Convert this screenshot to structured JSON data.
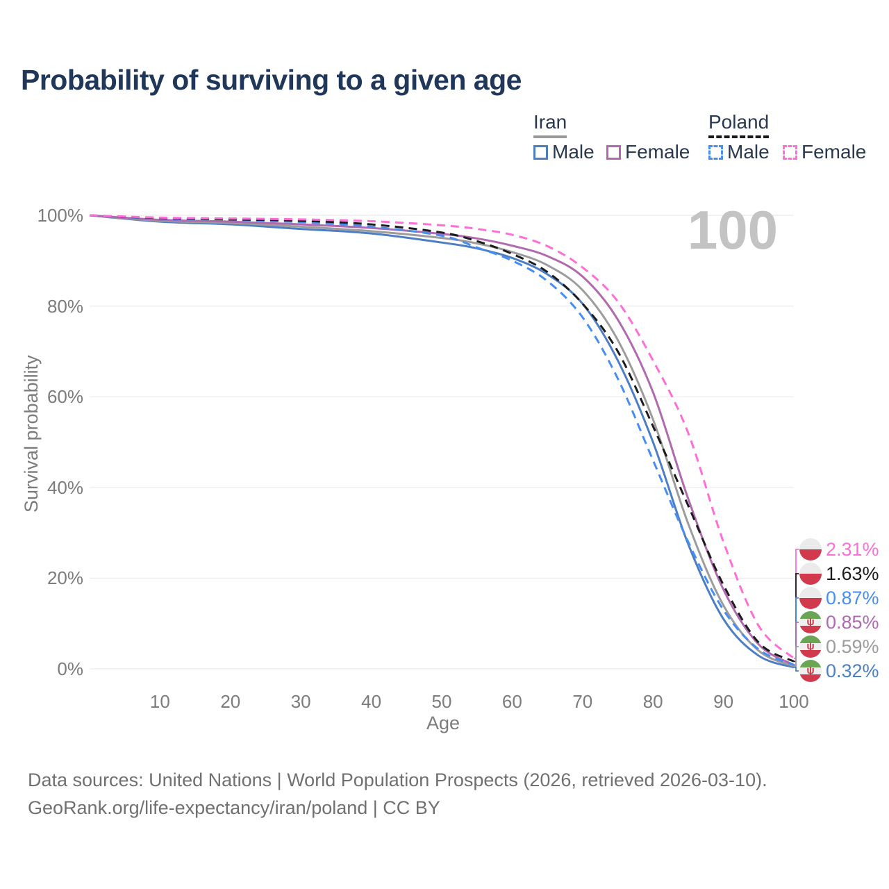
{
  "title": "Probability of surviving to a given age",
  "legend": {
    "groups": [
      {
        "name": "Iran",
        "style": "solid",
        "line_color": "#9a9a9a",
        "items": [
          {
            "label": "Male",
            "color": "#4d7ec4"
          },
          {
            "label": "Female",
            "color": "#b06ab0"
          }
        ]
      },
      {
        "name": "Poland",
        "style": "dashed",
        "line_color": "#1a1a1a",
        "items": [
          {
            "label": "Male",
            "color": "#478df3"
          },
          {
            "label": "Female",
            "color": "#ff6ed8"
          }
        ]
      }
    ]
  },
  "chart_data": {
    "type": "line",
    "title": "Probability of surviving to a given age",
    "xlabel": "Age",
    "ylabel": "Survival probability",
    "xlim": [
      0,
      100
    ],
    "ylim": [
      0,
      100
    ],
    "grid": "horizontal",
    "legend_position": "top-right",
    "annotations": {
      "watermark": "100"
    },
    "x_ticks": [
      {
        "v": 10,
        "label": "10"
      },
      {
        "v": 20,
        "label": "20"
      },
      {
        "v": 30,
        "label": "30"
      },
      {
        "v": 40,
        "label": "40"
      },
      {
        "v": 50,
        "label": "50"
      },
      {
        "v": 60,
        "label": "60"
      },
      {
        "v": 70,
        "label": "70"
      },
      {
        "v": 80,
        "label": "80"
      },
      {
        "v": 90,
        "label": "90"
      },
      {
        "v": 100,
        "label": "100"
      }
    ],
    "y_ticks": [
      {
        "v": 0,
        "label": "0%"
      },
      {
        "v": 20,
        "label": "20%"
      },
      {
        "v": 40,
        "label": "40%"
      },
      {
        "v": 60,
        "label": "60%"
      },
      {
        "v": 80,
        "label": "80%"
      },
      {
        "v": 100,
        "label": "100%"
      }
    ],
    "x": [
      0,
      10,
      20,
      30,
      40,
      50,
      55,
      60,
      65,
      70,
      75,
      80,
      85,
      90,
      95,
      100
    ],
    "series": [
      {
        "name": "Poland Female",
        "country": "Poland",
        "sex": "female",
        "color": "#ff6ed8",
        "dash": "dashed",
        "flag": "poland",
        "end_label": "2.31%",
        "values": [
          100,
          99.5,
          99.3,
          99.1,
          98.7,
          97.8,
          97.0,
          95.7,
          93.2,
          88.5,
          81.0,
          68.0,
          52.0,
          28.0,
          9.5,
          2.31
        ]
      },
      {
        "name": "Poland Both Sexes",
        "country": "Poland",
        "sex": "both",
        "color": "#1c1c1c",
        "dash": "dashed",
        "flag": "poland",
        "end_label": "1.63%",
        "values": [
          100,
          99.4,
          99.1,
          98.8,
          98.0,
          96.2,
          94.3,
          91.5,
          87.5,
          80.5,
          70.0,
          53.5,
          36.0,
          18.5,
          5.8,
          1.63
        ]
      },
      {
        "name": "Poland Male",
        "country": "Poland",
        "sex": "male",
        "color": "#478df3",
        "dash": "dashed",
        "flag": "poland",
        "end_label": "0.87%",
        "values": [
          100,
          99.3,
          99.0,
          98.5,
          97.5,
          95.5,
          92.9,
          90.0,
          85.5,
          77.5,
          64.0,
          46.0,
          28.0,
          13.0,
          4.3,
          0.87
        ]
      },
      {
        "name": "Iran Female",
        "country": "Iran",
        "sex": "female",
        "color": "#b06ab0",
        "dash": "solid",
        "flag": "iran",
        "end_label": "0.85%",
        "values": [
          100,
          99.0,
          98.6,
          98.0,
          97.2,
          95.9,
          94.9,
          93.3,
          91.0,
          86.5,
          77.0,
          61.0,
          37.5,
          17.5,
          5.4,
          0.85
        ]
      },
      {
        "name": "Iran Both Sexes",
        "country": "Iran",
        "sex": "both",
        "color": "#9c9c9c",
        "dash": "solid",
        "flag": "iran",
        "end_label": "0.59%",
        "values": [
          100,
          98.8,
          98.3,
          97.5,
          96.5,
          95.0,
          93.8,
          91.9,
          89.0,
          83.5,
          72.5,
          55.0,
          32.0,
          14.0,
          4.0,
          0.59
        ]
      },
      {
        "name": "Iran Male",
        "country": "Iran",
        "sex": "male",
        "color": "#4d7ec4",
        "dash": "solid",
        "flag": "iran",
        "end_label": "0.32%",
        "values": [
          100,
          98.6,
          98.0,
          97.0,
          96.0,
          94.0,
          92.7,
          90.6,
          87.0,
          80.5,
          68.0,
          50.0,
          27.5,
          11.0,
          2.9,
          0.32
        ]
      }
    ]
  },
  "footer": {
    "line1": "Data sources: United Nations | World Population Prospects (2026, retrieved 2026-03-10).",
    "line2": "GeoRank.org/life-expectancy/iran/poland | CC BY"
  }
}
